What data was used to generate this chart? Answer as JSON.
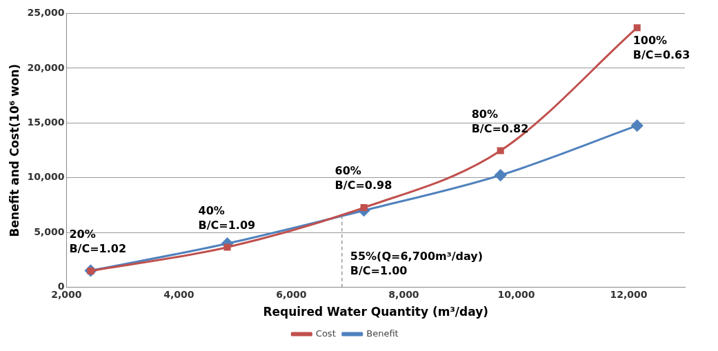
{
  "chart_data": {
    "type": "line",
    "xlabel": "Required Water Quantity (m³/day)",
    "ylabel": "Benefit and Cost(10⁶ won)",
    "xlim": [
      2000,
      13000
    ],
    "xticks": [
      {
        "value": 2000,
        "label": "2,000"
      },
      {
        "value": 4000,
        "label": "4,000"
      },
      {
        "value": 6000,
        "label": "6,000"
      },
      {
        "value": 8000,
        "label": "8,000"
      },
      {
        "value": 10000,
        "label": "10,000"
      },
      {
        "value": 12000,
        "label": "12,000"
      }
    ],
    "ylim": [
      0,
      25000
    ],
    "yticks": [
      {
        "value": 0,
        "label": "0"
      },
      {
        "value": 5000,
        "label": "5,000"
      },
      {
        "value": 10000,
        "label": "10,000"
      },
      {
        "value": 15000,
        "label": "15,000"
      },
      {
        "value": 20000,
        "label": "20,000"
      },
      {
        "value": 25000,
        "label": "25,000"
      }
    ],
    "grid": "y",
    "legend": "bottom",
    "series": [
      {
        "name": "Cost",
        "color": "#c0504d",
        "marker": "square",
        "x": [
          2430,
          4860,
          7290,
          9720,
          12150
        ],
        "values": [
          1500,
          3670,
          7280,
          12470,
          23690
        ]
      },
      {
        "name": "Benefit",
        "color": "#4f81bd",
        "marker": "diamond",
        "x": [
          2430,
          4860,
          7290,
          9720,
          12150
        ],
        "values": [
          1530,
          4000,
          7020,
          10240,
          14760
        ]
      }
    ],
    "ref_lines": [
      {
        "axis": "x",
        "value": 6900,
        "color": "#808080",
        "line_style": "dashed"
      }
    ],
    "annotations": [
      {
        "text": "20%\nB/C=1.02",
        "x": 2430,
        "y": 1500
      },
      {
        "text": "40%\nB/C=1.09",
        "x": 4860,
        "y": 3670
      },
      {
        "text": "60%\nB/C=0.98",
        "x": 7290,
        "y": 7280
      },
      {
        "text": "80%\nB/C=0.82",
        "x": 9720,
        "y": 12470
      },
      {
        "text": "100%\nB/C=0.63",
        "x": 12150,
        "y": 23690
      },
      {
        "text": "55%(Q=6,700m³/day)\nB/C=1.00",
        "x": 6900
      }
    ]
  }
}
